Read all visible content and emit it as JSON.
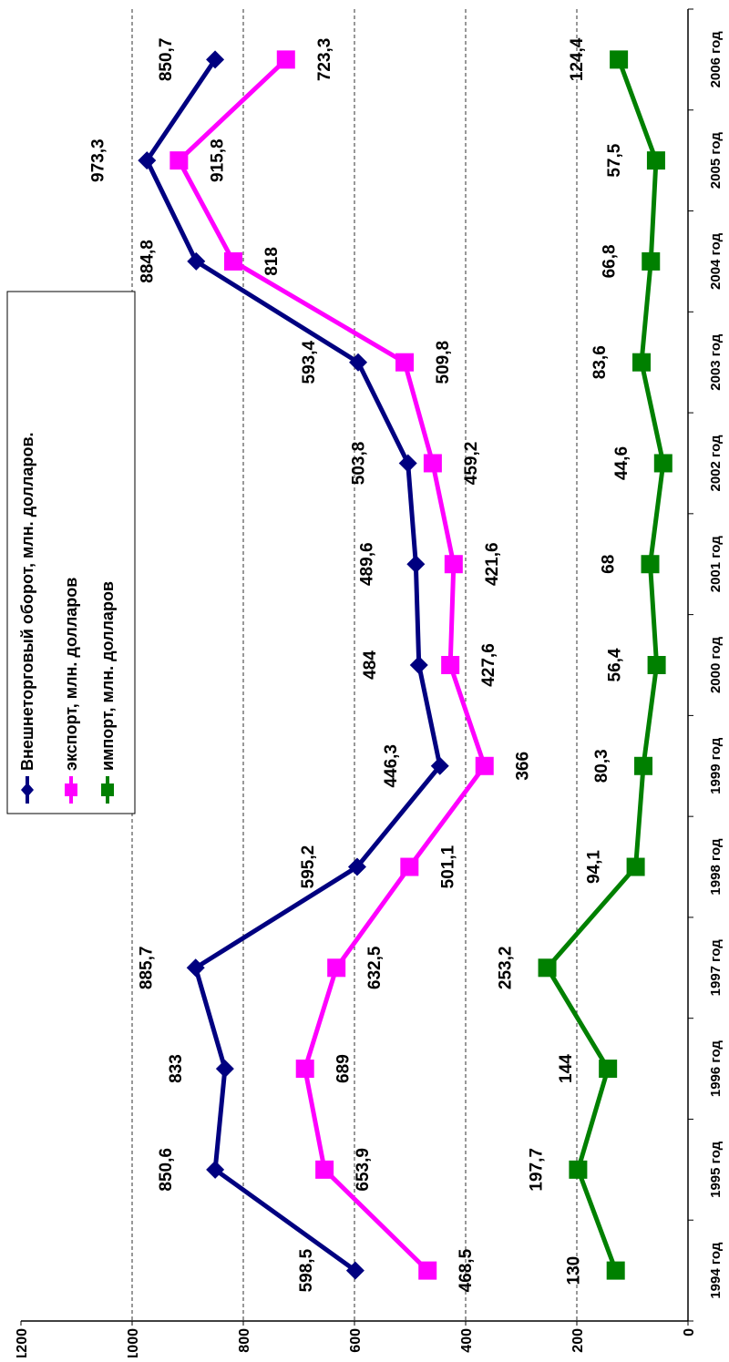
{
  "chart_data": {
    "type": "line",
    "categories": [
      "1994 год",
      "1995 год",
      "1996 год",
      "1997 год",
      "1998 год",
      "1999 год",
      "2000 год",
      "2001 год",
      "2002 год",
      "2003 год",
      "2004 год",
      "2005 год",
      "2006 год"
    ],
    "series": [
      {
        "name": "Внешнеторговый оборот, млн. долларов.",
        "color": "#000080",
        "marker": "diamond",
        "values": [
          598.5,
          850.6,
          833,
          885.7,
          595.2,
          446.3,
          484,
          489.6,
          503.8,
          593.4,
          884.8,
          973.3,
          850.7
        ],
        "labels": [
          "598,5",
          "850,6",
          "833",
          "885,7",
          "595,2",
          "446,3",
          "484",
          "489,6",
          "503,8",
          "593,4",
          "884,8",
          "973,3",
          "850,7"
        ]
      },
      {
        "name": "экспорт, млн. долларов",
        "color": "#FF00FF",
        "marker": "square",
        "values": [
          468.5,
          653.9,
          689,
          632.5,
          501.1,
          366,
          427.6,
          421.6,
          459.2,
          509.8,
          818,
          915.8,
          723.3
        ],
        "labels": [
          "468,5",
          "653,9",
          "689",
          "632,5",
          "501,1",
          "366",
          "427,6",
          "421,6",
          "459,2",
          "509,8",
          "818",
          "915,8",
          "723,3"
        ]
      },
      {
        "name": "импорт, млн. долларов",
        "color": "#008000",
        "marker": "square",
        "values": [
          130,
          197.7,
          144,
          253.2,
          94.1,
          80.3,
          56.4,
          68,
          44.6,
          83.6,
          66.8,
          57.5,
          124.4
        ],
        "labels": [
          "130",
          "197,7",
          "144",
          "253,2",
          "94,1",
          "80,3",
          "56,4",
          "68",
          "44,6",
          "83,6",
          "66,8",
          "57,5",
          "124,4"
        ]
      }
    ],
    "yticks": [
      "0",
      "200",
      "400",
      "600",
      "800",
      "1000",
      "1200"
    ],
    "ylim": [
      0,
      1200
    ],
    "grid": true,
    "legend": "top-left",
    "orientation": "rotated-90"
  }
}
